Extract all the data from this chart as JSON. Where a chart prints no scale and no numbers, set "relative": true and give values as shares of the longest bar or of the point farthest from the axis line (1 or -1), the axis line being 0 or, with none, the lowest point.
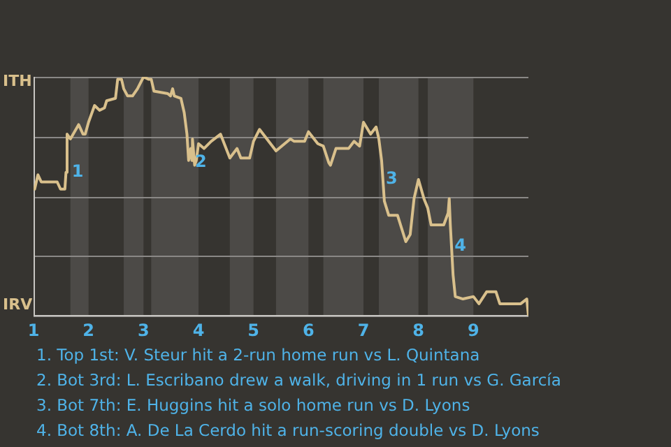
{
  "chart_data": {
    "type": "line",
    "relative": true,
    "x": [
      1.02,
      1.08,
      1.14,
      1.43,
      1.49,
      1.57,
      1.59,
      1.61,
      1.67,
      1.82,
      1.9,
      1.94,
      2.0,
      2.11,
      2.2,
      2.29,
      2.33,
      2.49,
      2.53,
      2.6,
      2.64,
      2.71,
      2.8,
      2.89,
      3.0,
      3.09,
      3.14,
      3.19,
      3.44,
      3.49,
      3.53,
      3.56,
      3.68,
      3.74,
      3.79,
      3.82,
      3.86,
      3.88,
      3.89,
      3.93,
      3.96,
      4.0,
      4.1,
      4.23,
      4.4,
      4.57,
      4.7,
      4.77,
      4.93,
      5.0,
      5.11,
      5.41,
      5.67,
      5.74,
      5.93,
      6.0,
      6.17,
      6.27,
      6.37,
      6.4,
      6.5,
      6.73,
      6.83,
      6.93,
      7.0,
      7.13,
      7.23,
      7.28,
      7.33,
      7.38,
      7.46,
      7.62,
      7.77,
      7.85,
      7.92,
      8.0,
      8.1,
      8.17,
      8.23,
      8.46,
      8.54,
      8.56,
      8.58,
      8.63,
      8.67,
      8.81,
      9.0,
      9.1,
      9.24,
      9.41,
      9.48,
      9.86,
      9.97,
      10.0
    ],
    "series": [
      {
        "color": "#d9c08c",
        "values": [
          0.53,
          0.59,
          0.56,
          0.56,
          0.53,
          0.53,
          0.6,
          0.76,
          0.74,
          0.8,
          0.76,
          0.76,
          0.81,
          0.88,
          0.86,
          0.87,
          0.9,
          0.91,
          0.99,
          0.99,
          0.95,
          0.92,
          0.92,
          0.95,
          1,
          0.99,
          0.99,
          0.94,
          0.93,
          0.92,
          0.95,
          0.92,
          0.91,
          0.85,
          0.76,
          0.65,
          0.7,
          0.65,
          0.74,
          0.63,
          0.65,
          0.72,
          0.7,
          0.73,
          0.76,
          0.66,
          0.7,
          0.66,
          0.66,
          0.73,
          0.78,
          0.69,
          0.74,
          0.73,
          0.73,
          0.77,
          0.72,
          0.71,
          0.64,
          0.63,
          0.7,
          0.7,
          0.73,
          0.71,
          0.81,
          0.76,
          0.79,
          0.74,
          0.65,
          0.48,
          0.42,
          0.42,
          0.31,
          0.34,
          0.49,
          0.57,
          0.49,
          0.45,
          0.38,
          0.38,
          0.43,
          0.49,
          0.38,
          0.17,
          0.08,
          0.07,
          0.08,
          0.05,
          0.1,
          0.1,
          0.05,
          0.05,
          0.07,
          0
        ]
      }
    ],
    "xlim": [
      1,
      10
    ],
    "xticks": [
      1,
      2,
      3,
      4,
      5,
      6,
      7,
      8,
      9
    ],
    "grid": "y",
    "legend": false,
    "marker": "none",
    "bands": [
      {
        "axis": "x",
        "from": 1.67,
        "to": 2,
        "color": "#4c4a47"
      },
      {
        "axis": "x",
        "from": 2.64,
        "to": 3,
        "color": "#4c4a47"
      },
      {
        "axis": "x",
        "from": 3.14,
        "to": 4,
        "color": "#4c4a47"
      },
      {
        "axis": "x",
        "from": 4.57,
        "to": 5,
        "color": "#4c4a47"
      },
      {
        "axis": "x",
        "from": 5.41,
        "to": 6,
        "color": "#4c4a47"
      },
      {
        "axis": "x",
        "from": 6.27,
        "to": 7,
        "color": "#4c4a47"
      },
      {
        "axis": "x",
        "from": 7.28,
        "to": 8,
        "color": "#4c4a47"
      },
      {
        "axis": "x",
        "from": 8.17,
        "to": 9,
        "color": "#4c4a47"
      }
    ],
    "annotations": [
      "ITH",
      "IRV",
      {
        "text": "1",
        "x": 1.67,
        "y": 0.6
      },
      {
        "text": "2",
        "x": 3.91,
        "y": 0.64
      },
      {
        "text": "3",
        "x": 7.38,
        "y": 0.57
      },
      {
        "text": "4",
        "x": 8.63,
        "y": 0.29
      },
      "1. Top 1st: V. Steur hit a 2-run home run vs L. Quintana",
      "2. Bot 3rd: L. Escribano drew a walk, driving in 1 run vs G. García",
      "3. Bot 7th: E. Huggins hit a solo home run vs D. Lyons",
      "4. Bot 8th: A. De La Cerdo hit a run-scoring double vs D. Lyons"
    ]
  }
}
